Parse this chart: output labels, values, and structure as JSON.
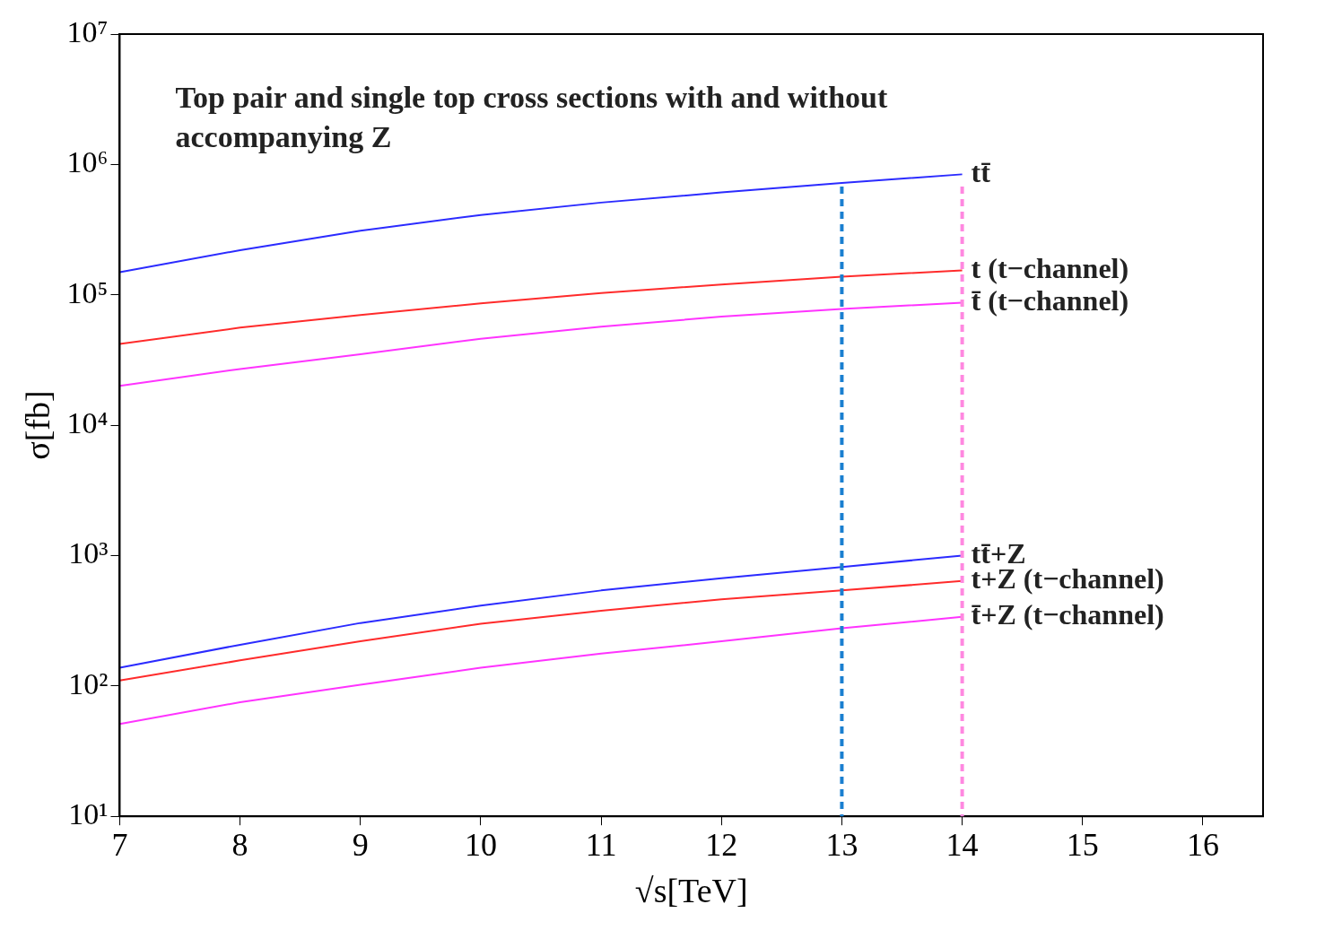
{
  "chart_data": {
    "type": "line",
    "xlabel": "√s[TeV]",
    "ylabel": "σ[fb]",
    "annotations": [
      "Top pair and single top cross sections with and without accompanying Z"
    ],
    "x": [
      7,
      8,
      9,
      10,
      11,
      12,
      13,
      14
    ],
    "series": [
      {
        "name": "tt̄",
        "color": "#2b2bff",
        "values": [
          149000,
          220000,
          310000,
          410000,
          510000,
          610000,
          720000,
          840000
        ]
      },
      {
        "name": "t (t−channel)",
        "color": "#ff2b2b",
        "values": [
          42000,
          56000,
          70000,
          86000,
          103000,
          120000,
          138000,
          154000
        ]
      },
      {
        "name": "t̄ (t−channel)",
        "color": "#ff33ff",
        "values": [
          20000,
          27000,
          35000,
          46000,
          57000,
          68000,
          78000,
          87000
        ]
      },
      {
        "name": "tt̄+Z",
        "color": "#2b2bff",
        "values": [
          138,
          207,
          304,
          414,
          540,
          670,
          818,
          1000
        ]
      },
      {
        "name": "t+Z (t−channel)",
        "color": "#ff2b2b",
        "values": [
          110,
          157,
          220,
          300,
          378,
          462,
          540,
          638
        ]
      },
      {
        "name": "t̄+Z (t−channel)",
        "color": "#ff33ff",
        "values": [
          51,
          75,
          102,
          138,
          177,
          220,
          277,
          339
        ]
      }
    ],
    "xlim": [
      7,
      16.5
    ],
    "xticks": [
      7,
      8,
      9,
      10,
      11,
      12,
      13,
      14,
      15,
      16
    ],
    "ylim": [
      10,
      10000000
    ],
    "yticks": [
      {
        "value": 10,
        "label": "10¹"
      },
      {
        "value": 100,
        "label": "10²"
      },
      {
        "value": 1000,
        "label": "10³"
      },
      {
        "value": 10000,
        "label": "10⁴"
      },
      {
        "value": 100000,
        "label": "10⁵"
      },
      {
        "value": 1000000,
        "label": "10⁶"
      },
      {
        "value": 10000000,
        "label": "10⁷"
      }
    ],
    "log": "y",
    "grid": false,
    "legend": false,
    "marker": "none",
    "line_style": "solid",
    "ref_lines": [
      {
        "axis": "x",
        "value": 13,
        "color": "#1a7fd0",
        "line_style": "dashed"
      },
      {
        "axis": "x",
        "value": 14,
        "color": "#ff88e0",
        "line_style": "dashed"
      }
    ]
  }
}
